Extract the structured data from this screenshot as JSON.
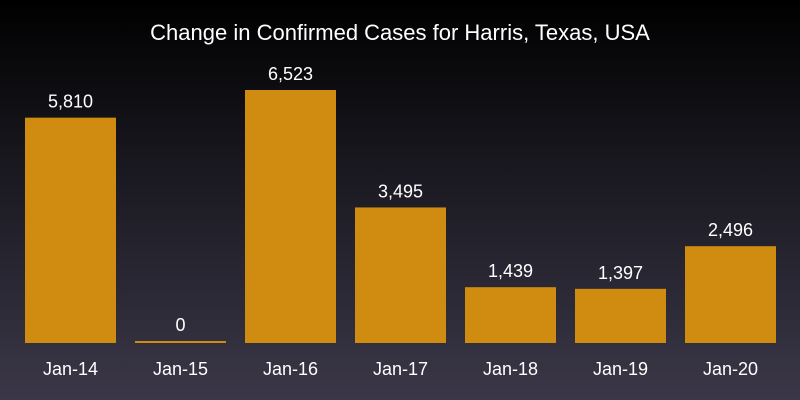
{
  "chart_data": {
    "type": "bar",
    "title": "Change in Confirmed Cases for Harris, Texas, USA",
    "categories": [
      "Jan-14",
      "Jan-15",
      "Jan-16",
      "Jan-17",
      "Jan-18",
      "Jan-19",
      "Jan-20"
    ],
    "values": [
      5810,
      0,
      6523,
      3495,
      1439,
      1397,
      2496
    ],
    "value_labels": [
      "5,810",
      "0",
      "6,523",
      "3,495",
      "1,439",
      "1,397",
      "2,496"
    ],
    "xlabel": "",
    "ylabel": "",
    "ylim": [
      0,
      6523
    ],
    "grid": false,
    "bar_color": "#d08c10"
  }
}
